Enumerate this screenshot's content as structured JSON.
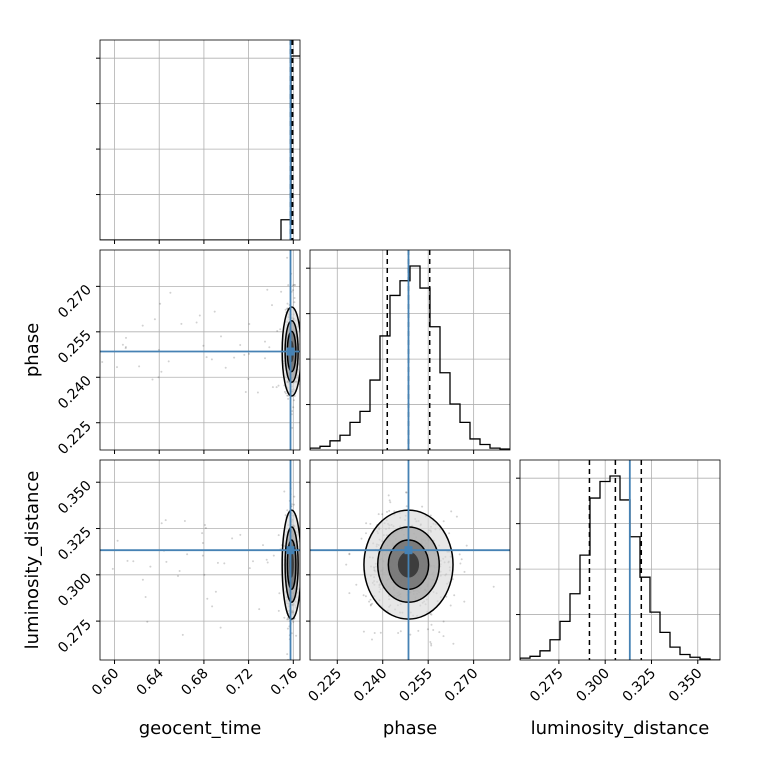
{
  "chart_data": {
    "type": "corner",
    "parameters": [
      "geocent_time",
      "phase",
      "luminosity_distance"
    ],
    "axis_labels": {
      "x": [
        "geocent_time",
        "phase",
        "luminosity_distance"
      ],
      "y": [
        "",
        "phase",
        "luminosity_distance"
      ]
    },
    "ranges": {
      "geocent_time": [
        0.587,
        0.766
      ],
      "phase": [
        0.216,
        0.282
      ],
      "luminosity_distance": [
        0.254,
        0.362
      ]
    },
    "ticks": {
      "geocent_time": [
        "0.60",
        "0.64",
        "0.68",
        "0.72",
        "0.76"
      ],
      "phase": [
        "0.225",
        "0.240",
        "0.255",
        "0.270"
      ],
      "luminosity_distance": [
        "0.275",
        "0.300",
        "0.325",
        "0.350"
      ]
    },
    "injection_values": {
      "geocent_time": 0.7575,
      "phase": 0.2485,
      "luminosity_distance": 0.3133
    },
    "quantiles": {
      "geocent_time": [
        0.7575,
        0.7585,
        0.7595
      ],
      "phase": [
        0.2415,
        0.2485,
        0.2555
      ],
      "luminosity_distance": [
        0.2915,
        0.3055,
        0.3195
      ]
    },
    "histograms": {
      "geocent_time": {
        "edges": [
          0.587,
          0.596,
          0.605,
          0.614,
          0.623,
          0.632,
          0.641,
          0.65,
          0.659,
          0.668,
          0.677,
          0.686,
          0.695,
          0.704,
          0.713,
          0.722,
          0.731,
          0.74,
          0.749,
          0.758,
          0.767
        ],
        "counts": [
          0,
          0,
          0,
          0,
          0,
          0,
          0,
          0,
          0,
          0,
          0,
          0,
          0,
          0,
          0,
          0,
          0,
          0,
          0.11,
          1.0
        ]
      },
      "phase": {
        "edges": [
          0.216,
          0.2193,
          0.2226,
          0.2259,
          0.2292,
          0.2325,
          0.2358,
          0.2391,
          0.2424,
          0.2457,
          0.249,
          0.2523,
          0.2556,
          0.2589,
          0.2622,
          0.2655,
          0.2688,
          0.2721,
          0.2754,
          0.2787,
          0.282
        ],
        "counts": [
          0.01,
          0.02,
          0.05,
          0.08,
          0.15,
          0.21,
          0.38,
          0.62,
          0.84,
          0.92,
          1.0,
          0.88,
          0.67,
          0.42,
          0.25,
          0.15,
          0.06,
          0.03,
          0.01,
          0.005
        ]
      },
      "luminosity_distance": {
        "edges": [
          0.254,
          0.2594,
          0.2648,
          0.2702,
          0.2756,
          0.281,
          0.2864,
          0.2918,
          0.2972,
          0.3026,
          0.308,
          0.3134,
          0.3188,
          0.3242,
          0.3296,
          0.335,
          0.3404,
          0.3458,
          0.3512,
          0.3566,
          0.362
        ],
        "counts": [
          0.01,
          0.02,
          0.05,
          0.11,
          0.21,
          0.36,
          0.57,
          0.88,
          0.97,
          1.0,
          0.87,
          0.67,
          0.45,
          0.26,
          0.15,
          0.07,
          0.03,
          0.015,
          0.005,
          0
        ]
      }
    },
    "contour_levels": [
      "0.118",
      "0.393",
      "0.675",
      "0.864"
    ],
    "grid": true
  }
}
